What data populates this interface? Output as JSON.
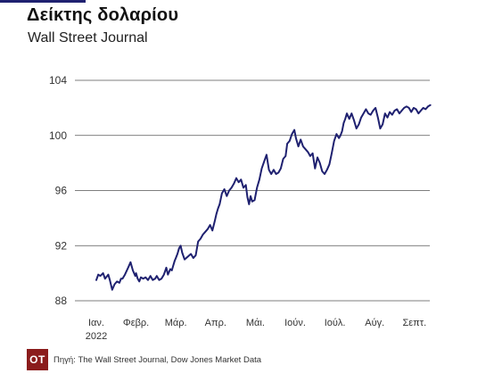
{
  "header": {
    "title": "Δείκτης δολαρίου",
    "subtitle": "Wall Street Journal"
  },
  "footer": {
    "logo_text": "OT",
    "source": "Πηγή: The Wall Street Journal, Dow Jones Market Data"
  },
  "colors": {
    "line": "#1f2170",
    "logo_bg": "#8b1c1c",
    "grid": "#555555"
  },
  "chart_data": {
    "type": "line",
    "title": "Δείκτης δολαρίου",
    "subtitle": "Wall Street Journal",
    "ylim": [
      88,
      104
    ],
    "yticks": [
      88,
      92,
      96,
      100,
      104
    ],
    "grid": "horizontal",
    "x_tick_labels": [
      "Ιαν.\n2022",
      "Φεβρ.",
      "Μάρ.",
      "Απρ.",
      "Μάι.",
      "Ιούν.",
      "Ιούλ.",
      "Αύγ.",
      "Σεπτ."
    ],
    "x_tick_months": [
      0,
      1,
      2,
      3,
      4,
      5,
      6,
      7,
      8
    ],
    "x_domain_months": [
      0,
      8.7
    ],
    "series": [
      {
        "x": [
          0.0,
          0.05,
          0.1,
          0.17,
          0.22,
          0.3,
          0.34,
          0.4,
          0.46,
          0.52,
          0.58,
          0.62,
          0.66,
          0.72,
          0.8,
          0.86,
          0.92,
          0.98,
          1.0,
          1.04,
          1.08,
          1.12,
          1.18,
          1.24,
          1.3,
          1.36,
          1.42,
          1.48,
          1.52,
          1.58,
          1.64,
          1.7,
          1.76,
          1.8,
          1.86,
          1.9,
          1.94,
          1.97,
          2.0,
          2.04,
          2.08,
          2.12,
          2.16,
          2.22,
          2.3,
          2.38,
          2.44,
          2.5,
          2.56,
          2.62,
          2.68,
          2.74,
          2.8,
          2.86,
          2.92,
          2.98,
          3.02,
          3.06,
          3.1,
          3.16,
          3.22,
          3.28,
          3.34,
          3.4,
          3.46,
          3.52,
          3.58,
          3.64,
          3.7,
          3.76,
          3.8,
          3.84,
          3.88,
          3.92,
          3.98,
          4.04,
          4.1,
          4.16,
          4.22,
          4.28,
          4.34,
          4.4,
          4.46,
          4.52,
          4.58,
          4.64,
          4.7,
          4.76,
          4.8,
          4.86,
          4.92,
          4.98,
          5.02,
          5.08,
          5.14,
          5.2,
          5.26,
          5.32,
          5.38,
          5.44,
          5.5,
          5.56,
          5.62,
          5.68,
          5.74,
          5.8,
          5.86,
          5.92,
          5.98,
          6.04,
          6.1,
          6.14,
          6.18,
          6.22,
          6.26,
          6.3,
          6.36,
          6.42,
          6.48,
          6.54,
          6.6,
          6.66,
          6.72,
          6.78,
          6.84,
          6.9,
          6.96,
          7.02,
          7.08,
          7.14,
          7.2,
          7.26,
          7.32,
          7.38,
          7.44,
          7.5,
          7.56,
          7.62,
          7.68,
          7.74,
          7.8,
          7.86,
          7.92,
          7.98,
          8.04,
          8.1,
          8.16,
          8.22,
          8.28,
          8.34,
          8.4
        ],
        "values": [
          89.5,
          89.9,
          89.8,
          90.0,
          89.6,
          89.9,
          89.5,
          88.8,
          89.2,
          89.4,
          89.3,
          89.6,
          89.6,
          89.9,
          90.4,
          90.8,
          90.2,
          89.8,
          90.0,
          89.6,
          89.4,
          89.7,
          89.6,
          89.7,
          89.5,
          89.8,
          89.5,
          89.6,
          89.8,
          89.5,
          89.6,
          89.9,
          90.4,
          89.9,
          90.3,
          90.2,
          90.6,
          90.9,
          91.1,
          91.4,
          91.8,
          92.0,
          91.5,
          91.0,
          91.2,
          91.4,
          91.1,
          91.3,
          92.3,
          92.5,
          92.8,
          93.0,
          93.2,
          93.5,
          93.1,
          93.8,
          94.3,
          94.7,
          95.0,
          95.8,
          96.1,
          95.6,
          96.0,
          96.2,
          96.5,
          96.9,
          96.6,
          96.8,
          96.2,
          96.4,
          95.5,
          95.0,
          95.6,
          95.2,
          95.3,
          96.2,
          96.8,
          97.6,
          98.1,
          98.6,
          97.5,
          97.2,
          97.5,
          97.2,
          97.3,
          97.6,
          98.3,
          98.5,
          99.4,
          99.6,
          100.1,
          100.4,
          99.8,
          99.2,
          99.7,
          99.2,
          99.0,
          98.8,
          98.5,
          98.7,
          97.6,
          98.4,
          98.0,
          97.4,
          97.2,
          97.5,
          97.9,
          98.7,
          99.6,
          100.1,
          99.8,
          100.0,
          100.3,
          100.9,
          101.2,
          101.6,
          101.2,
          101.6,
          101.1,
          100.5,
          100.8,
          101.3,
          101.6,
          101.9,
          101.6,
          101.5,
          101.8,
          102.0,
          101.3,
          100.5,
          100.8,
          101.6,
          101.3,
          101.7,
          101.5,
          101.8,
          101.9,
          101.6,
          101.8,
          102.0,
          102.1,
          102.0,
          101.7,
          102.0,
          101.9,
          101.6,
          101.8,
          102.0,
          101.9,
          102.1,
          102.2
        ]
      }
    ]
  }
}
